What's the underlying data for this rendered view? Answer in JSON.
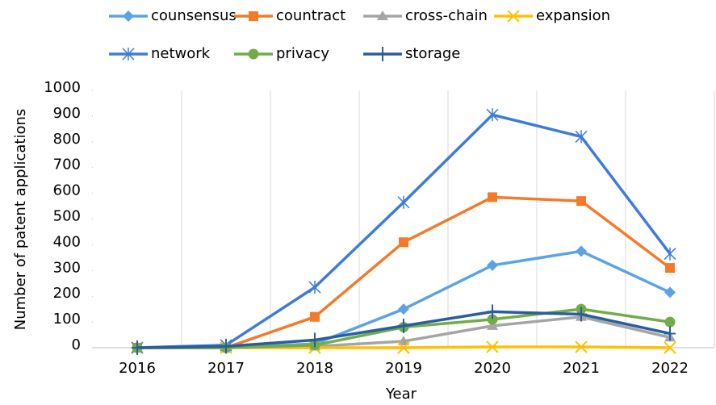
{
  "chart_data": {
    "type": "line",
    "x_label": "Year",
    "y_label": "Number of patent applications",
    "categories": [
      "2016",
      "2017",
      "2018",
      "2019",
      "2020",
      "2021",
      "2022"
    ],
    "series": [
      {
        "name": "counsensus",
        "color": "#5ba3e8",
        "marker": "diamond",
        "values": [
          0,
          0,
          15,
          150,
          320,
          375,
          215
        ]
      },
      {
        "name": "countract",
        "color": "#f47a2a",
        "marker": "square",
        "values": [
          0,
          0,
          120,
          410,
          585,
          570,
          310
        ]
      },
      {
        "name": "cross-chain",
        "color": "#a5a5a5",
        "marker": "triangle",
        "values": [
          0,
          0,
          5,
          25,
          85,
          120,
          40
        ]
      },
      {
        "name": "expansion",
        "color": "#ffc000",
        "marker": "x",
        "values": [
          0,
          0,
          0,
          0,
          3,
          3,
          0
        ]
      },
      {
        "name": "network",
        "color": "#3f7bd9",
        "marker": "star",
        "values": [
          0,
          10,
          235,
          565,
          905,
          820,
          365
        ]
      },
      {
        "name": "privacy",
        "color": "#70ad47",
        "marker": "circle",
        "values": [
          0,
          0,
          10,
          80,
          110,
          150,
          100
        ]
      },
      {
        "name": "storage",
        "color": "#2a5d9f",
        "marker": "plus",
        "values": [
          0,
          5,
          30,
          85,
          140,
          130,
          55
        ]
      }
    ],
    "ylim": [
      0,
      1000
    ],
    "yticks": [
      0,
      100,
      200,
      300,
      400,
      500,
      600,
      700,
      800,
      900,
      1000
    ],
    "grid": "vertical",
    "legend": "top"
  }
}
